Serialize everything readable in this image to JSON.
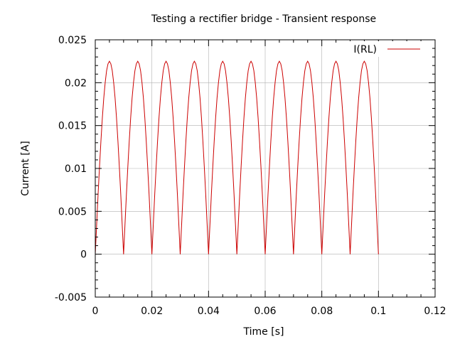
{
  "chart_data": {
    "type": "line",
    "title": "Testing a rectifier bridge - Transient response",
    "xlabel": "Time [s]",
    "ylabel": "Current [A]",
    "xlim": [
      0,
      0.12
    ],
    "ylim": [
      -0.005,
      0.025
    ],
    "x_ticks": [
      0,
      0.02,
      0.04,
      0.06,
      0.08,
      0.1,
      0.12
    ],
    "x_tick_labels": [
      "0",
      "0.02",
      "0.04",
      "0.06",
      "0.08",
      "0.1",
      "0.12"
    ],
    "y_ticks": [
      -0.005,
      0,
      0.005,
      0.01,
      0.015,
      0.02,
      0.025
    ],
    "y_tick_labels": [
      "-0.005",
      "0",
      "0.005",
      "0.01",
      "0.015",
      "0.02",
      "0.025"
    ],
    "grid": true,
    "legend_position": "top-right",
    "series": [
      {
        "name": "I(RL)",
        "color": "#cc0000",
        "x": [
          0.0,
          0.0005,
          0.001,
          0.0015,
          0.002,
          0.0025,
          0.003,
          0.0035,
          0.004,
          0.0045,
          0.005,
          0.0055,
          0.006,
          0.0065,
          0.007,
          0.0075,
          0.008,
          0.0085,
          0.009,
          0.0095,
          0.01,
          0.0105,
          0.011,
          0.0115,
          0.012,
          0.0125,
          0.013,
          0.0135,
          0.014,
          0.0145,
          0.015,
          0.0155,
          0.016,
          0.0165,
          0.017,
          0.0175,
          0.018,
          0.0185,
          0.019,
          0.0195,
          0.02,
          0.0205,
          0.021,
          0.0215,
          0.022,
          0.0225,
          0.023,
          0.0235,
          0.024,
          0.0245,
          0.025,
          0.0255,
          0.026,
          0.0265,
          0.027,
          0.0275,
          0.028,
          0.0285,
          0.029,
          0.0295,
          0.03,
          0.0305,
          0.031,
          0.0315,
          0.032,
          0.0325,
          0.033,
          0.0335,
          0.034,
          0.0345,
          0.035,
          0.0355,
          0.036,
          0.0365,
          0.037,
          0.0375,
          0.038,
          0.0385,
          0.039,
          0.0395,
          0.04,
          0.0405,
          0.041,
          0.0415,
          0.042,
          0.0425,
          0.043,
          0.0435,
          0.044,
          0.0445,
          0.045,
          0.0455,
          0.046,
          0.0465,
          0.047,
          0.0475,
          0.048,
          0.0485,
          0.049,
          0.0495,
          0.05,
          0.0505,
          0.051,
          0.0515,
          0.052,
          0.0525,
          0.053,
          0.0535,
          0.054,
          0.0545,
          0.055,
          0.0555,
          0.056,
          0.0565,
          0.057,
          0.0575,
          0.058,
          0.0585,
          0.059,
          0.0595,
          0.06,
          0.0605,
          0.061,
          0.0615,
          0.062,
          0.0625,
          0.063,
          0.0635,
          0.064,
          0.0645,
          0.065,
          0.0655,
          0.066,
          0.0665,
          0.067,
          0.0675,
          0.068,
          0.0685,
          0.069,
          0.0695,
          0.07,
          0.0705,
          0.071,
          0.0715,
          0.072,
          0.0725,
          0.073,
          0.0735,
          0.074,
          0.0745,
          0.075,
          0.0755,
          0.076,
          0.0765,
          0.077,
          0.0775,
          0.078,
          0.0785,
          0.079,
          0.0795,
          0.08,
          0.0805,
          0.081,
          0.0815,
          0.082,
          0.0825,
          0.083,
          0.0835,
          0.084,
          0.0845,
          0.085,
          0.0855,
          0.086,
          0.0865,
          0.087,
          0.0875,
          0.088,
          0.0885,
          0.089,
          0.0895,
          0.09,
          0.0905,
          0.091,
          0.0915,
          0.092,
          0.0925,
          0.093,
          0.0935,
          0.094,
          0.0945,
          0.095,
          0.0955,
          0.096,
          0.0965,
          0.097,
          0.0975,
          0.098,
          0.0985,
          0.099,
          0.0995,
          0.1
        ],
        "y": [
          0.0,
          0.0035,
          0.007,
          0.0102,
          0.0132,
          0.0159,
          0.0182,
          0.02,
          0.0214,
          0.0222,
          0.0225,
          0.0222,
          0.0214,
          0.02,
          0.0182,
          0.0159,
          0.0132,
          0.0102,
          0.007,
          0.0035,
          0.0,
          0.0035,
          0.007,
          0.0102,
          0.0132,
          0.0159,
          0.0182,
          0.02,
          0.0214,
          0.0222,
          0.0225,
          0.0222,
          0.0214,
          0.02,
          0.0182,
          0.0159,
          0.0132,
          0.0102,
          0.007,
          0.0035,
          0.0,
          0.0035,
          0.007,
          0.0102,
          0.0132,
          0.0159,
          0.0182,
          0.02,
          0.0214,
          0.0222,
          0.0225,
          0.0222,
          0.0214,
          0.02,
          0.0182,
          0.0159,
          0.0132,
          0.0102,
          0.007,
          0.0035,
          0.0,
          0.0035,
          0.007,
          0.0102,
          0.0132,
          0.0159,
          0.0182,
          0.02,
          0.0214,
          0.0222,
          0.0225,
          0.0222,
          0.0214,
          0.02,
          0.0182,
          0.0159,
          0.0132,
          0.0102,
          0.007,
          0.0035,
          0.0,
          0.0035,
          0.007,
          0.0102,
          0.0132,
          0.0159,
          0.0182,
          0.02,
          0.0214,
          0.0222,
          0.0225,
          0.0222,
          0.0214,
          0.02,
          0.0182,
          0.0159,
          0.0132,
          0.0102,
          0.007,
          0.0035,
          0.0,
          0.0035,
          0.007,
          0.0102,
          0.0132,
          0.0159,
          0.0182,
          0.02,
          0.0214,
          0.0222,
          0.0225,
          0.0222,
          0.0214,
          0.02,
          0.0182,
          0.0159,
          0.0132,
          0.0102,
          0.007,
          0.0035,
          0.0,
          0.0035,
          0.007,
          0.0102,
          0.0132,
          0.0159,
          0.0182,
          0.02,
          0.0214,
          0.0222,
          0.0225,
          0.0222,
          0.0214,
          0.02,
          0.0182,
          0.0159,
          0.0132,
          0.0102,
          0.007,
          0.0035,
          0.0,
          0.0035,
          0.007,
          0.0102,
          0.0132,
          0.0159,
          0.0182,
          0.02,
          0.0214,
          0.0222,
          0.0225,
          0.0222,
          0.0214,
          0.02,
          0.0182,
          0.0159,
          0.0132,
          0.0102,
          0.007,
          0.0035,
          0.0,
          0.0035,
          0.007,
          0.0102,
          0.0132,
          0.0159,
          0.0182,
          0.02,
          0.0214,
          0.0222,
          0.0225,
          0.0222,
          0.0214,
          0.02,
          0.0182,
          0.0159,
          0.0132,
          0.0102,
          0.007,
          0.0035,
          0.0,
          0.0035,
          0.007,
          0.0102,
          0.0132,
          0.0159,
          0.0182,
          0.02,
          0.0214,
          0.0222,
          0.0225,
          0.0222,
          0.0214,
          0.02,
          0.0182,
          0.0159,
          0.0132,
          0.0102,
          0.007,
          0.0035,
          0.0
        ]
      }
    ]
  }
}
